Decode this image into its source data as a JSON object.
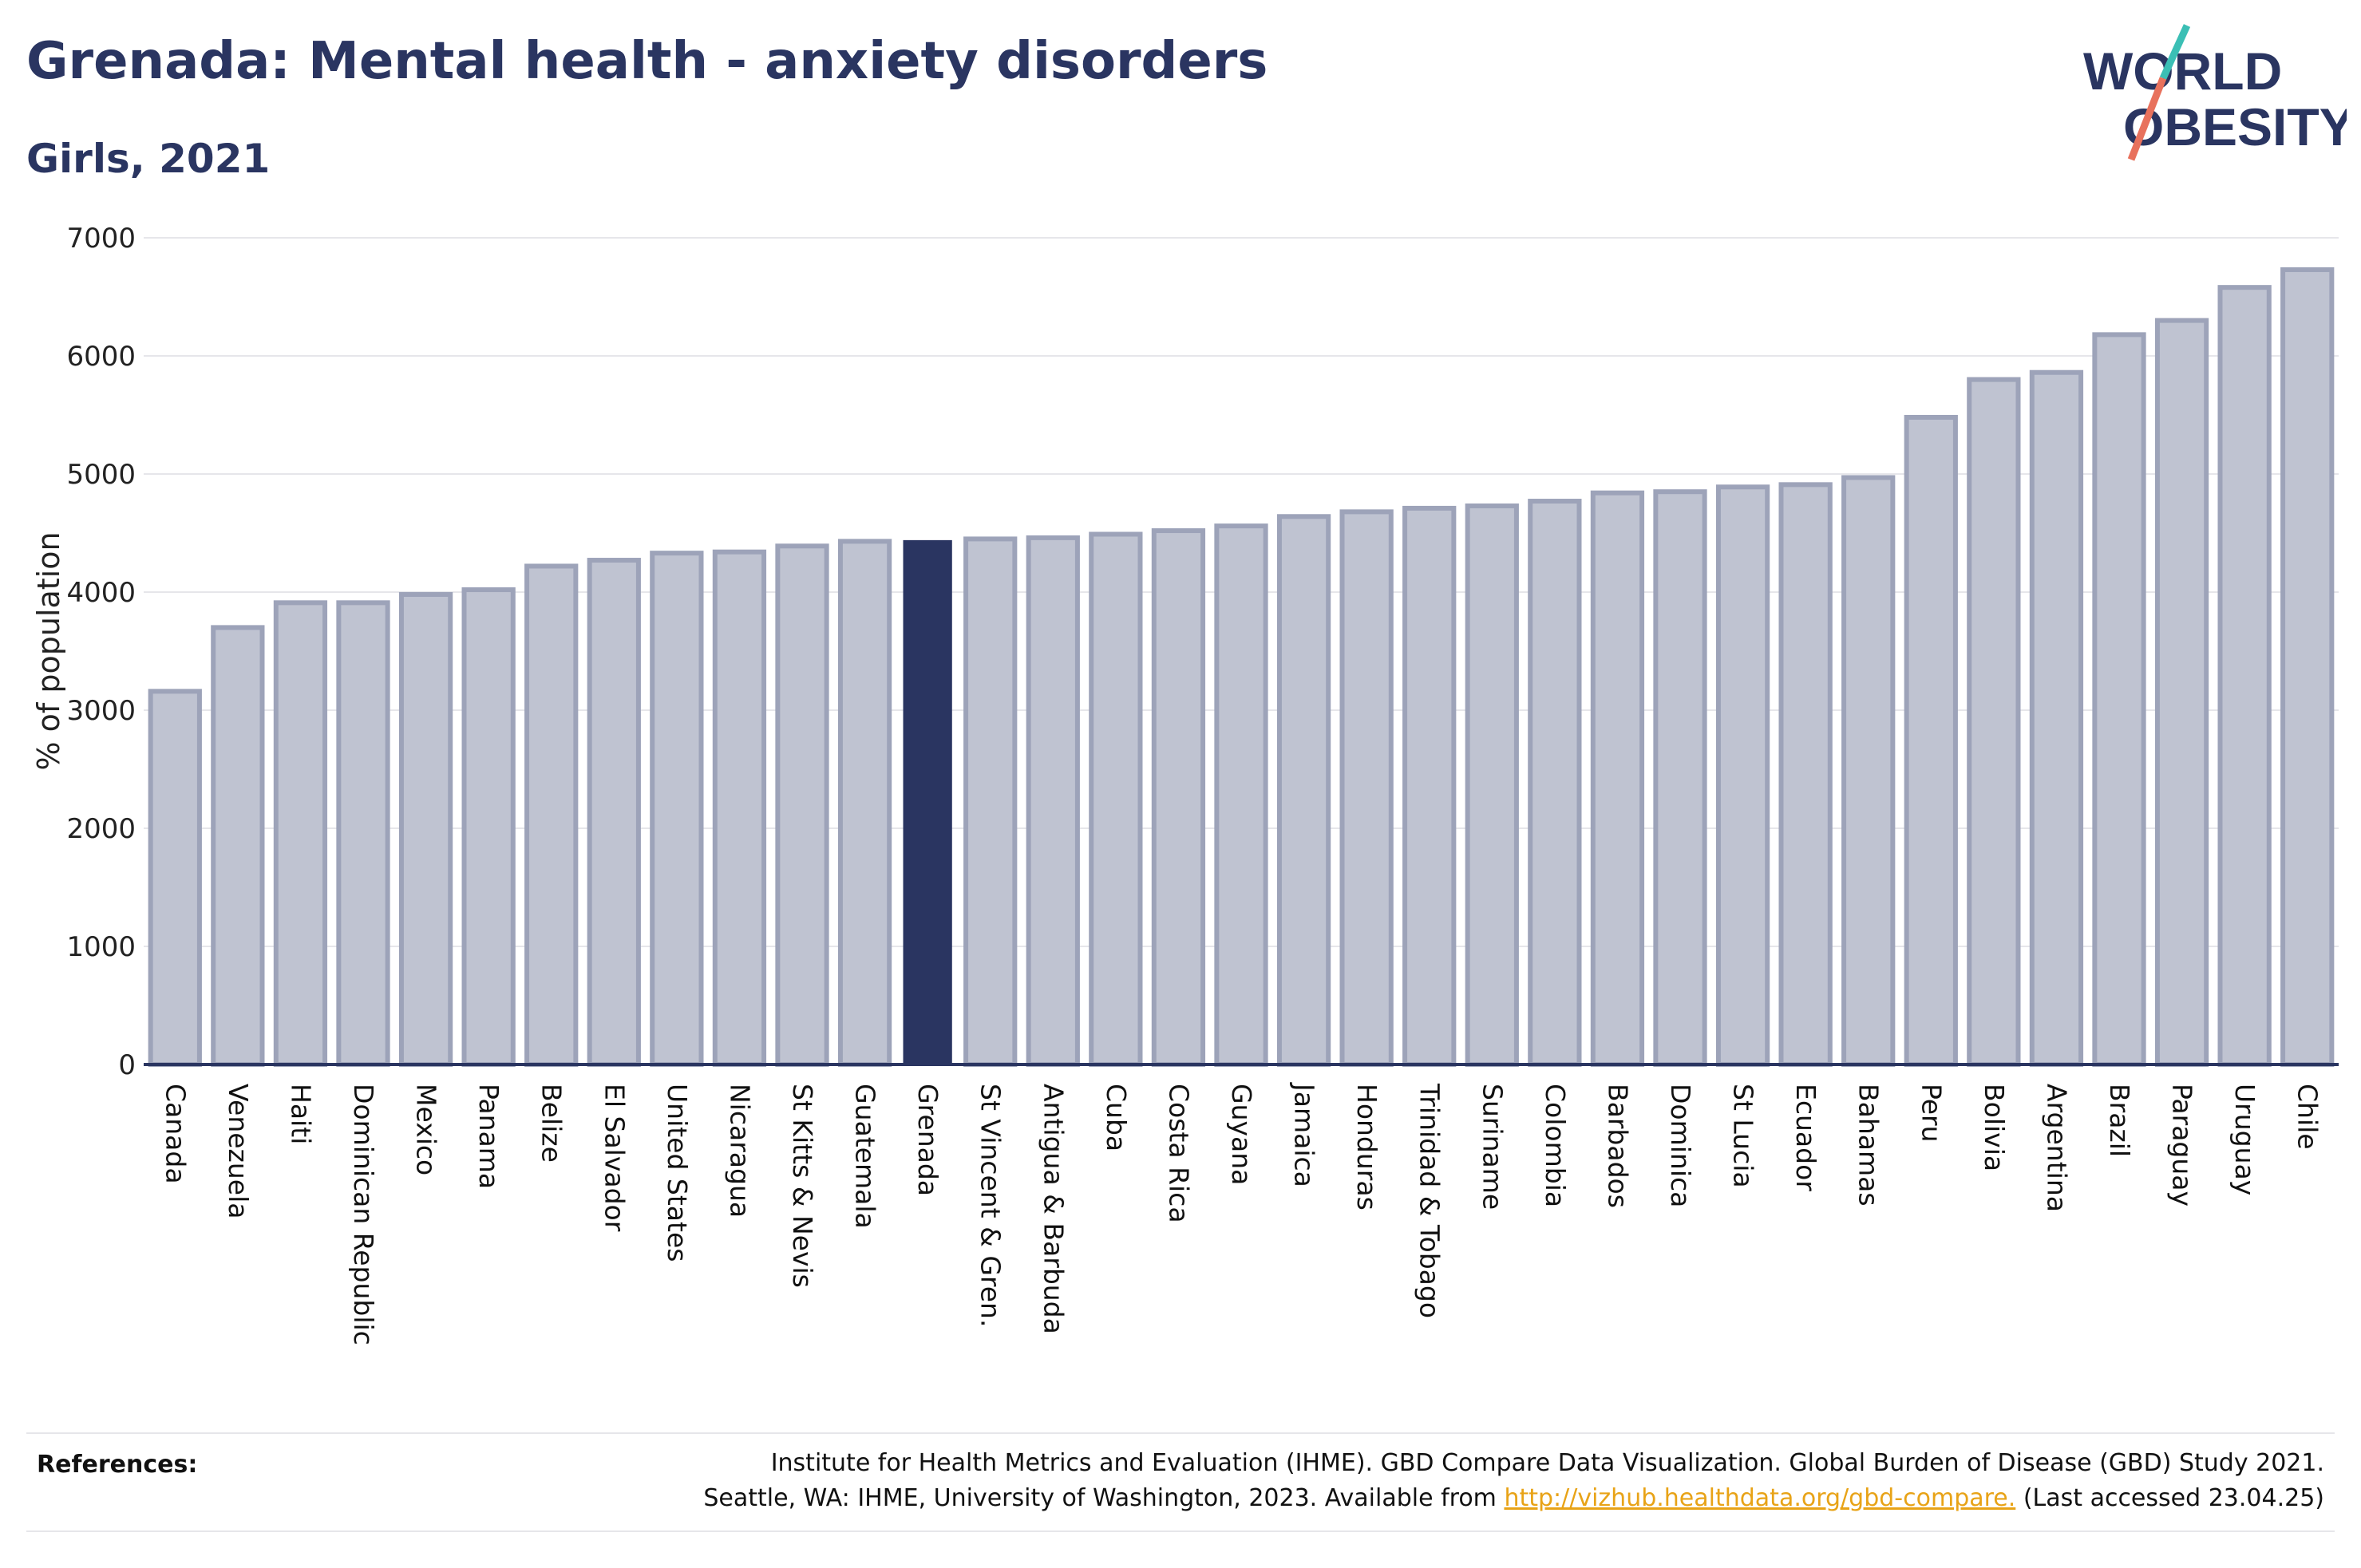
{
  "header": {
    "title": "Grenada: Mental health - anxiety disorders",
    "subtitle": "Girls, 2021"
  },
  "logo": {
    "line1": "WORLD",
    "line2": "OBESITY"
  },
  "chart_data": {
    "type": "bar",
    "ylabel": "% of population",
    "xlabel": "",
    "ylim": [
      0,
      7000
    ],
    "yticks": [
      0,
      1000,
      2000,
      3000,
      4000,
      5000,
      6000,
      7000
    ],
    "grid": true,
    "highlight": "Grenada",
    "colors": {
      "bar": "#bfc3d1",
      "bar_border": "#9da3b9",
      "highlight": "#2a3561",
      "axis": "#2a3561",
      "grid": "#e6e6ea"
    },
    "categories": [
      "Canada",
      "Venezuela",
      "Haiti",
      "Dominican Republic",
      "Mexico",
      "Panama",
      "Belize",
      "El Salvador",
      "United States",
      "Nicaragua",
      "St Kitts & Nevis",
      "Guatemala",
      "Grenada",
      "St Vincent & Gren.",
      "Antigua & Barbuda",
      "Cuba",
      "Costa Rica",
      "Guyana",
      "Jamaica",
      "Honduras",
      "Trinidad & Tobago",
      "Suriname",
      "Colombia",
      "Barbados",
      "Dominica",
      "St Lucia",
      "Ecuador",
      "Bahamas",
      "Peru",
      "Bolivia",
      "Argentina",
      "Brazil",
      "Paraguay",
      "Uruguay",
      "Chile"
    ],
    "values": [
      3160,
      3700,
      3910,
      3910,
      3980,
      4020,
      4220,
      4270,
      4330,
      4340,
      4390,
      4430,
      4440,
      4450,
      4460,
      4490,
      4520,
      4560,
      4640,
      4680,
      4710,
      4730,
      4770,
      4840,
      4850,
      4890,
      4910,
      4970,
      5480,
      5800,
      5860,
      6180,
      6300,
      6580,
      6730
    ]
  },
  "references": {
    "label": "References:",
    "line1": "Institute for Health Metrics and Evaluation (IHME). GBD Compare Data Visualization. Global Burden of Disease (GBD) Study 2021.",
    "line2_prefix": "Seattle, WA: IHME, University of Washington, 2023. Available from ",
    "link": "http://vizhub.healthdata.org/gbd-compare.",
    "line2_suffix": " (Last accessed 23.04.25)"
  }
}
